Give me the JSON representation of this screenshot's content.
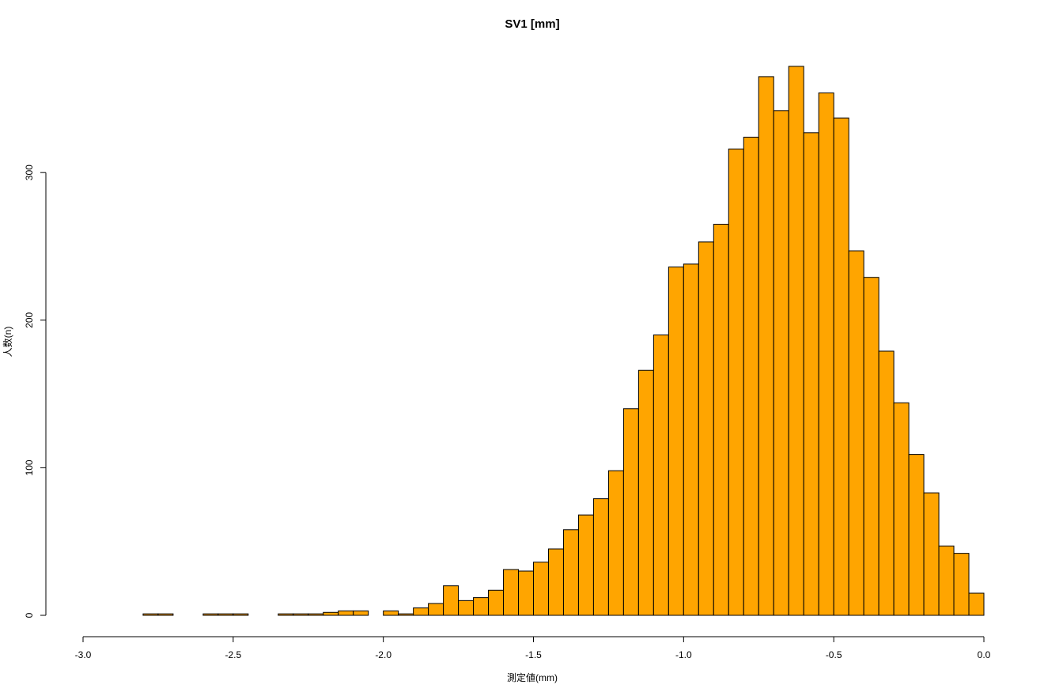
{
  "chart_data": {
    "type": "bar",
    "subtype": "histogram",
    "title": "SV1 [mm]",
    "xlabel": "測定値(mm)",
    "ylabel": "人数(n)",
    "xlim": [
      -3.0,
      0.0
    ],
    "ylim": [
      0,
      375
    ],
    "x_ticks": [
      "-3.0",
      "-2.5",
      "-2.0",
      "-1.5",
      "-1.0",
      "-0.5",
      "0.0"
    ],
    "x_tick_values": [
      -3.0,
      -2.5,
      -2.0,
      -1.5,
      -1.0,
      -0.5,
      0.0
    ],
    "y_ticks": [
      "0",
      "100",
      "200",
      "300"
    ],
    "y_tick_values": [
      0,
      100,
      200,
      300
    ],
    "bin_width": 0.05,
    "bin_start": -2.8,
    "bar_color": "#FFA500",
    "counts": [
      1,
      1,
      0,
      0,
      1,
      1,
      1,
      0,
      0,
      1,
      1,
      1,
      2,
      3,
      3,
      0,
      3,
      1,
      5,
      8,
      20,
      10,
      12,
      17,
      31,
      30,
      36,
      45,
      58,
      68,
      79,
      98,
      140,
      166,
      190,
      236,
      238,
      253,
      265,
      316,
      324,
      365,
      342,
      372,
      327,
      354,
      337,
      247,
      229,
      179,
      144,
      109,
      83,
      47,
      42,
      15
    ],
    "grid": false,
    "legend": "none"
  }
}
